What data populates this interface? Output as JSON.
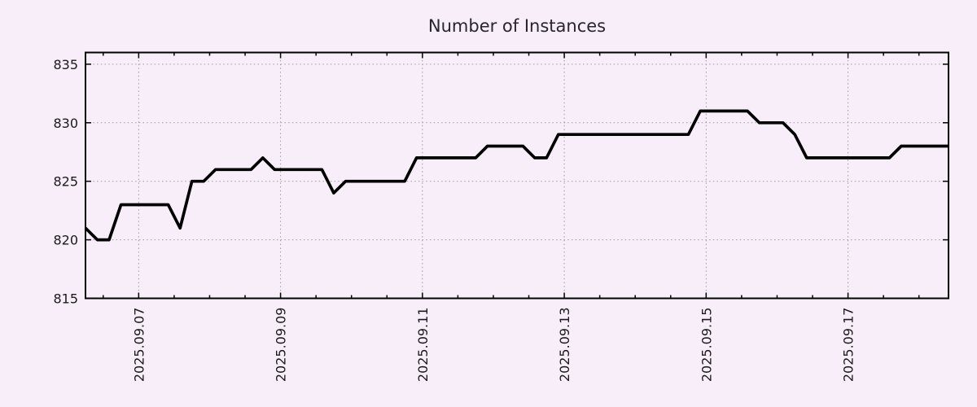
{
  "chart_data": {
    "type": "line",
    "title": "Number of Instances",
    "background": "#f8eef9",
    "text_color": "#26262c",
    "axis_color": "#000000",
    "grid": {
      "show": true,
      "color": "#9a9a9a",
      "style": "dotted"
    },
    "x_axis": {
      "tick_labels": [
        "2025.09.07",
        "2025.09.09",
        "2025.09.11",
        "2025.09.13",
        "2025.09.15",
        "2025.09.17"
      ],
      "tick_positions_day": [
        7,
        9,
        11,
        13,
        15,
        17
      ],
      "minor_tick_step_days": 0.5,
      "range_days": [
        6.25,
        18.4167
      ],
      "samples_start_day": 6.25,
      "samples_interval_hours": 4
    },
    "y_axis": {
      "tick_labels": [
        "815",
        "820",
        "825",
        "830",
        "835"
      ],
      "tick_values": [
        815,
        820,
        825,
        830,
        835
      ],
      "range": [
        815,
        836
      ]
    },
    "series": [
      {
        "name": "instances",
        "color": "#000000",
        "values": [
          821,
          820,
          820,
          823,
          823,
          823,
          823,
          823,
          821,
          825,
          825,
          826,
          826,
          826,
          826,
          827,
          826,
          826,
          826,
          826,
          826,
          824,
          825,
          825,
          825,
          825,
          825,
          825,
          827,
          827,
          827,
          827,
          827,
          827,
          828,
          828,
          828,
          828,
          827,
          827,
          829,
          829,
          829,
          829,
          829,
          829,
          829,
          829,
          829,
          829,
          829,
          829,
          831,
          831,
          831,
          831,
          831,
          830,
          830,
          830,
          829,
          827,
          827,
          827,
          827,
          827,
          827,
          827,
          827,
          828,
          828,
          828,
          828,
          828
        ]
      }
    ]
  }
}
